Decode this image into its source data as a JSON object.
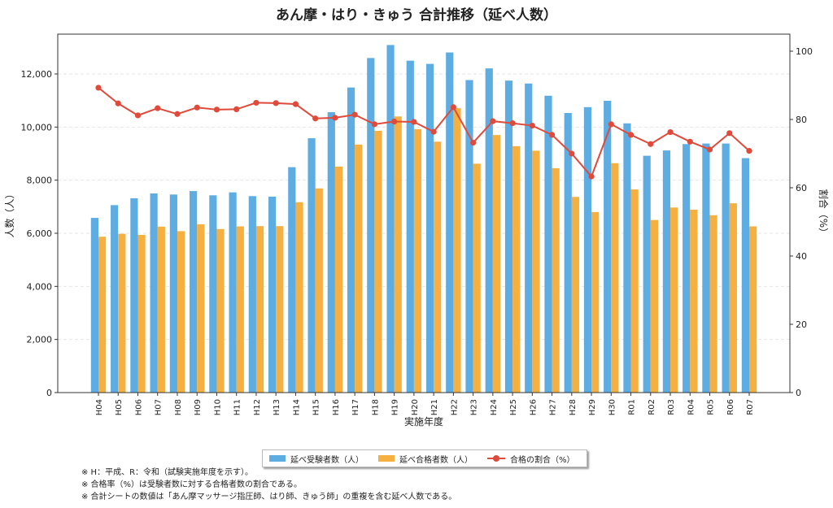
{
  "chart_data": {
    "type": "bar",
    "title": "あん摩・はり・きゅう 合計推移（延べ人数）",
    "xlabel": "実施年度",
    "ylabel": "人数（人）",
    "y2label": "割合（%）",
    "ylim": [
      0,
      13500
    ],
    "y2lim": [
      0,
      105
    ],
    "yticks": [
      "0",
      "2,000",
      "4,000",
      "6,000",
      "8,000",
      "10,000",
      "12,000"
    ],
    "y2ticks": [
      "0",
      "20",
      "40",
      "60",
      "80",
      "100"
    ],
    "grid": true,
    "legend_position": "bottom-center",
    "categories": [
      "H04",
      "H05",
      "H06",
      "H07",
      "H08",
      "H09",
      "H10",
      "H11",
      "H12",
      "H13",
      "H14",
      "H15",
      "H16",
      "H17",
      "H18",
      "H19",
      "H20",
      "H21",
      "H22",
      "H23",
      "H24",
      "H25",
      "H26",
      "H27",
      "H28",
      "H29",
      "H30",
      "R01",
      "R02",
      "R03",
      "R04",
      "R05",
      "R06",
      "R07"
    ],
    "series": [
      {
        "name": "延べ受験者数（人）",
        "type": "bar",
        "axis": "left",
        "color": "#5dade2",
        "values": [
          6580,
          7060,
          7320,
          7500,
          7460,
          7590,
          7430,
          7540,
          7400,
          7380,
          8490,
          9580,
          10560,
          11490,
          12600,
          13090,
          12500,
          12380,
          12810,
          11770,
          12210,
          11750,
          11640,
          11180,
          10530,
          10750,
          10990,
          10140,
          8920,
          9120,
          9360,
          9380,
          9380,
          8830
        ]
      },
      {
        "name": "延べ合格者数（人）",
        "type": "bar",
        "axis": "left",
        "color": "#f5b041",
        "values": [
          5870,
          5980,
          5940,
          6250,
          6080,
          6340,
          6160,
          6260,
          6270,
          6270,
          7170,
          7690,
          8510,
          9340,
          9860,
          10400,
          9920,
          9450,
          10710,
          8620,
          9700,
          9280,
          9110,
          8450,
          7370,
          6800,
          8640,
          7650,
          6500,
          6970,
          6890,
          6680,
          7130,
          6260
        ]
      },
      {
        "name": "合格の割合（%）",
        "type": "line",
        "axis": "right",
        "color": "#e04a3a",
        "values": [
          89.3,
          84.7,
          81.2,
          83.3,
          81.6,
          83.5,
          82.9,
          83.0,
          84.9,
          84.8,
          84.5,
          80.3,
          80.5,
          81.4,
          78.6,
          79.4,
          79.3,
          76.4,
          83.6,
          73.2,
          79.5,
          78.9,
          78.2,
          75.5,
          70.0,
          63.3,
          78.6,
          75.5,
          72.8,
          76.3,
          73.5,
          71.2,
          76.0,
          70.8
        ]
      }
    ]
  },
  "notes": [
    "※ H：平成、R：令和（試験実施年度を示す）。",
    "※ 合格率（%）は受験者数に対する合格者数の割合である。",
    "※ 合計シートの数値は「あん摩マッサージ指圧師、はり師、きゅう師」の重複を含む延べ人数である。"
  ]
}
